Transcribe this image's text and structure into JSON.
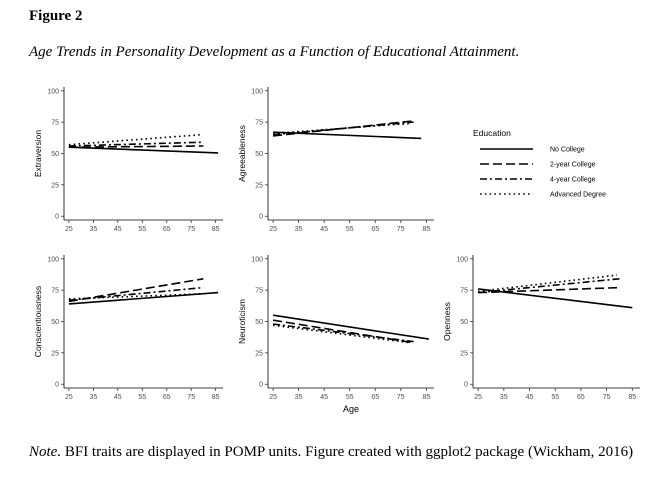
{
  "figure": {
    "label": "Figure 2",
    "title": "Age Trends in Personality Development as a Function of Educational Attainment."
  },
  "note": {
    "lead": "Note.",
    "text": " BFI traits are displayed in POMP units. Figure created with ggplot2 package (Wickham, 2016)"
  },
  "legend": {
    "title": "Education",
    "items": [
      {
        "label": "No College",
        "style": "solid"
      },
      {
        "label": "2-year College",
        "style": "dashed"
      },
      {
        "label": "4-year College",
        "style": "dashdot"
      },
      {
        "label": "Advanced Degree",
        "style": "dotted"
      }
    ]
  },
  "chart_data": [
    {
      "type": "line",
      "ylabel": "Extraversion",
      "xlabel": "",
      "xticks": [
        25,
        35,
        45,
        55,
        65,
        75,
        85
      ],
      "yticks": [
        0,
        25,
        50,
        75,
        100
      ],
      "xlim": [
        23,
        88
      ],
      "ylim": [
        -3,
        103
      ],
      "series": [
        {
          "name": "No College",
          "x": [
            25,
            86
          ],
          "y": [
            55,
            50.5
          ]
        },
        {
          "name": "2-year College",
          "x": [
            25,
            80
          ],
          "y": [
            55,
            56
          ]
        },
        {
          "name": "4-year College",
          "x": [
            25,
            80
          ],
          "y": [
            56,
            59
          ]
        },
        {
          "name": "Advanced Degree",
          "x": [
            25,
            79
          ],
          "y": [
            57,
            65
          ]
        }
      ]
    },
    {
      "type": "line",
      "ylabel": "Agreeableness",
      "xlabel": "",
      "xticks": [
        25,
        35,
        45,
        55,
        65,
        75,
        85
      ],
      "yticks": [
        0,
        25,
        50,
        75,
        100
      ],
      "xlim": [
        23,
        88
      ],
      "ylim": [
        -3,
        103
      ],
      "series": [
        {
          "name": "No College",
          "x": [
            25,
            83
          ],
          "y": [
            67,
            62
          ]
        },
        {
          "name": "2-year College",
          "x": [
            25,
            80
          ],
          "y": [
            64,
            76
          ]
        },
        {
          "name": "4-year College",
          "x": [
            25,
            80
          ],
          "y": [
            65,
            75
          ]
        },
        {
          "name": "Advanced Degree",
          "x": [
            25,
            79
          ],
          "y": [
            66,
            74
          ]
        }
      ]
    },
    {
      "type": "line",
      "ylabel": "Conscientiousness",
      "xlabel": "",
      "xticks": [
        25,
        35,
        45,
        55,
        65,
        75,
        85
      ],
      "yticks": [
        0,
        25,
        50,
        75,
        100
      ],
      "xlim": [
        23,
        88
      ],
      "ylim": [
        -3,
        103
      ],
      "series": [
        {
          "name": "No College",
          "x": [
            25,
            86
          ],
          "y": [
            64,
            73
          ]
        },
        {
          "name": "2-year College",
          "x": [
            25,
            80
          ],
          "y": [
            66,
            84
          ]
        },
        {
          "name": "4-year College",
          "x": [
            25,
            80
          ],
          "y": [
            67,
            77
          ]
        },
        {
          "name": "Advanced Degree",
          "x": [
            25,
            79
          ],
          "y": [
            68,
            72
          ]
        }
      ]
    },
    {
      "type": "line",
      "ylabel": "Neuroticism",
      "xlabel": "Age",
      "xticks": [
        25,
        35,
        45,
        55,
        65,
        75,
        85
      ],
      "yticks": [
        0,
        25,
        50,
        75,
        100
      ],
      "xlim": [
        23,
        88
      ],
      "ylim": [
        -3,
        103
      ],
      "series": [
        {
          "name": "No College",
          "x": [
            25,
            86
          ],
          "y": [
            55,
            36
          ]
        },
        {
          "name": "2-year College",
          "x": [
            25,
            80
          ],
          "y": [
            51,
            33
          ]
        },
        {
          "name": "4-year College",
          "x": [
            25,
            80
          ],
          "y": [
            48,
            34
          ]
        },
        {
          "name": "Advanced Degree",
          "x": [
            25,
            79
          ],
          "y": [
            47,
            33
          ]
        }
      ]
    },
    {
      "type": "line",
      "ylabel": "Openness",
      "xlabel": "",
      "xticks": [
        25,
        35,
        45,
        55,
        65,
        75,
        85
      ],
      "yticks": [
        0,
        25,
        50,
        75,
        100
      ],
      "xlim": [
        23,
        88
      ],
      "ylim": [
        -3,
        103
      ],
      "series": [
        {
          "name": "No College",
          "x": [
            25,
            85
          ],
          "y": [
            76,
            61
          ]
        },
        {
          "name": "2-year College",
          "x": [
            25,
            80
          ],
          "y": [
            73,
            77
          ]
        },
        {
          "name": "4-year College",
          "x": [
            25,
            80
          ],
          "y": [
            73,
            84
          ]
        },
        {
          "name": "Advanced Degree",
          "x": [
            25,
            79
          ],
          "y": [
            74,
            87
          ]
        }
      ]
    }
  ]
}
